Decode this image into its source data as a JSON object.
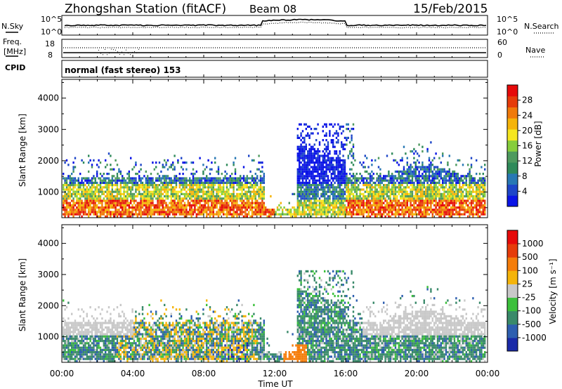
{
  "header": {
    "title": "Zhongshan Station (fitACF)",
    "beam": "Beam 08",
    "date": "15/Feb/2015"
  },
  "noise_panel": {
    "left_label": "N.Sky",
    "right_label": "N.Search",
    "left_ticks": [
      "10^5",
      "10^0"
    ],
    "right_ticks": [
      "10^5",
      "10^0"
    ]
  },
  "freq_panel": {
    "left_label_top": "Freq.",
    "left_label_bottom": "[MHz]",
    "right_label": "Nave",
    "left_ticks": [
      "18",
      "8"
    ],
    "right_ticks": [
      "60",
      "0"
    ]
  },
  "cpid_panel": {
    "label": "CPID",
    "text": "normal (fast stereo) 153"
  },
  "chart_data": [
    {
      "type": "heatmap",
      "name": "power",
      "ylabel": "Slant Range [km]",
      "yticks": [
        1000,
        2000,
        3000,
        4000
      ],
      "ylim": [
        180,
        4600
      ],
      "x_ticks": [
        "00:00",
        "04:00",
        "08:00",
        "12:00",
        "16:00",
        "20:00",
        "00:00"
      ],
      "colorbar": {
        "label": "Power [dB]",
        "ticks": [
          "4",
          "8",
          "12",
          "16",
          "20",
          "24",
          "28"
        ],
        "colors": [
          "#0a14e6",
          "#1e46c8",
          "#2878b4",
          "#2f8a5a",
          "#4e9a5e",
          "#86cd3c",
          "#f5e620",
          "#f5b40a",
          "#f07a0a",
          "#e63c0a",
          "#e60a0a"
        ]
      }
    },
    {
      "type": "heatmap",
      "name": "velocity",
      "ylabel": "Slant Range [km]",
      "yticks": [
        1000,
        2000,
        3000,
        4000
      ],
      "ylim": [
        180,
        4600
      ],
      "x_ticks": [
        "00:00",
        "04:00",
        "08:00",
        "12:00",
        "16:00",
        "20:00",
        "00:00"
      ],
      "colorbar": {
        "label": "Velocity [m s⁻¹]",
        "ticks": [
          "1000",
          "500",
          "100",
          "25",
          "-25",
          "-100",
          "-500",
          "-1000"
        ],
        "colors": [
          "#1a2aa8",
          "#2e5fb0",
          "#3a8a6a",
          "#3cc03c",
          "#c8c8c8",
          "#f5b40a",
          "#f57d0a",
          "#e63c0a",
          "#e60a0a"
        ]
      }
    }
  ],
  "xaxis": {
    "label": "Time UT"
  }
}
